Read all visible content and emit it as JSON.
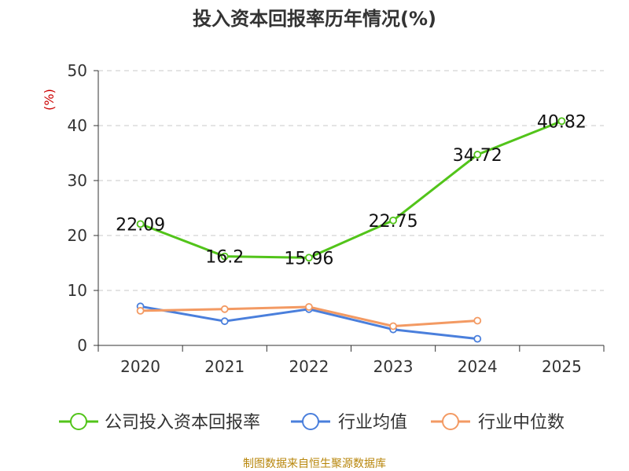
{
  "chart_data": {
    "type": "line",
    "title": "投入资本回报率历年情况(%)",
    "ylabel": "(%)",
    "xlabel": "",
    "categories": [
      "2020",
      "2021",
      "2022",
      "2023",
      "2024",
      "2025"
    ],
    "ylim": [
      0,
      50
    ],
    "yticks": [
      0,
      10,
      20,
      30,
      40,
      50
    ],
    "grid": true,
    "legend_position": "bottom",
    "series": [
      {
        "name": "公司投入资本回报率",
        "color": "#52c41a",
        "values": [
          22.09,
          16.2,
          15.96,
          22.75,
          34.72,
          40.82
        ],
        "labels": [
          "22.09",
          "16.2",
          "15.96",
          "22.75",
          "34.72",
          "40.82"
        ]
      },
      {
        "name": "行业均值",
        "color": "#4a7fdc",
        "values": [
          7.1,
          4.4,
          6.6,
          2.9,
          1.2,
          null
        ]
      },
      {
        "name": "行业中位数",
        "color": "#f39a63",
        "values": [
          6.3,
          6.6,
          7.0,
          3.5,
          4.5,
          null
        ]
      }
    ]
  },
  "footer": {
    "source": "制图数据来自恒生聚源数据库"
  }
}
